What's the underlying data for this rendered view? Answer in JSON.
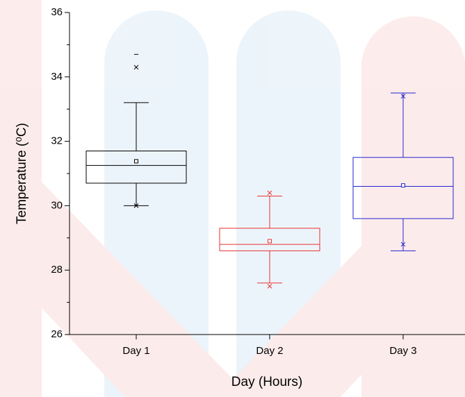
{
  "chart_data": {
    "type": "box",
    "x_label": "Day (Hours)",
    "y_label": "Temperature (⁰C)",
    "categories": [
      "Day 1",
      "Day 2",
      "Day 3"
    ],
    "ylim": [
      26,
      36
    ],
    "yticks": [
      26,
      28,
      30,
      32,
      34,
      36
    ],
    "yminorticks": [
      27,
      29,
      31,
      33,
      35
    ],
    "series": [
      {
        "color": "#000000",
        "whisker_low": 30.0,
        "q1": 30.7,
        "median": 31.25,
        "q3": 31.7,
        "whisker_high": 33.2,
        "mean": 31.38,
        "p1": 30.0,
        "p99": 34.3,
        "min": 30.0,
        "max": 34.7
      },
      {
        "color": "#e8312f",
        "whisker_low": 27.6,
        "q1": 28.6,
        "median": 28.8,
        "q3": 29.3,
        "whisker_high": 30.3,
        "mean": 28.9,
        "p1": 27.5,
        "p99": 30.4,
        "min": null,
        "max": null
      },
      {
        "color": "#2323d0",
        "whisker_low": 28.6,
        "q1": 29.6,
        "median": 30.6,
        "q3": 31.5,
        "whisker_high": 33.5,
        "mean": 30.63,
        "p1": 28.8,
        "p99": 33.4,
        "min": null,
        "max": null
      }
    ]
  }
}
